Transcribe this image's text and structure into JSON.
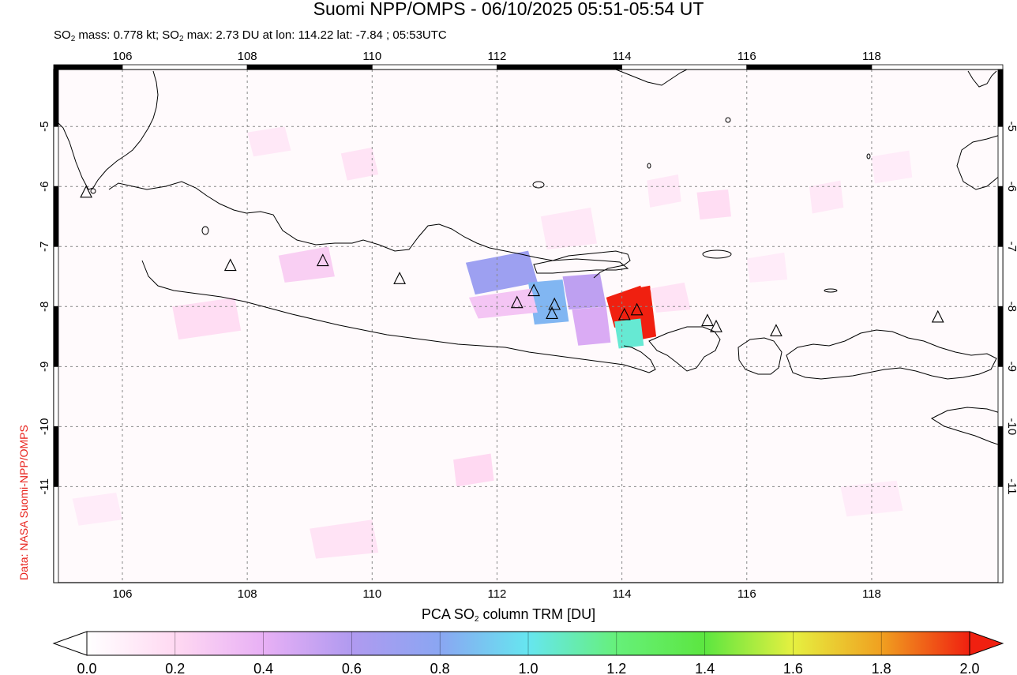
{
  "title": "Suomi NPP/OMPS - 06/10/2025 05:51-05:54 UT",
  "subtitle": {
    "mass_prefix": "SO",
    "mass_sub": "2",
    "mass_text": " mass: 0.778 kt; SO",
    "max_sub": "2",
    "max_text": " max: 2.73 DU at lon: 114.22 lat: -7.84 ; 05:53UTC"
  },
  "credit": "Data: NASA Suomi-NPP/OMPS",
  "map": {
    "lon_range": [
      104.9,
      120.1
    ],
    "lat_range": [
      -12.6,
      -4.05
    ],
    "lon_ticks": [
      106,
      108,
      110,
      112,
      114,
      116,
      118
    ],
    "lat_ticks": [
      -5,
      -6,
      -7,
      -8,
      -9,
      -10,
      -11
    ],
    "grid": true,
    "volcanoes": [
      {
        "lon": 105.42,
        "lat": -6.1
      },
      {
        "lon": 107.73,
        "lat": -7.32
      },
      {
        "lon": 109.21,
        "lat": -7.24
      },
      {
        "lon": 110.44,
        "lat": -7.54
      },
      {
        "lon": 112.32,
        "lat": -7.94
      },
      {
        "lon": 112.59,
        "lat": -7.74
      },
      {
        "lon": 112.92,
        "lat": -7.97
      },
      {
        "lon": 112.88,
        "lat": -8.12
      },
      {
        "lon": 114.04,
        "lat": -8.14
      },
      {
        "lon": 114.24,
        "lat": -8.06
      },
      {
        "lon": 115.37,
        "lat": -8.24
      },
      {
        "lon": 115.51,
        "lat": -8.34
      },
      {
        "lon": 116.47,
        "lat": -8.41
      },
      {
        "lon": 119.06,
        "lat": -8.18
      }
    ],
    "so2_pixels": [
      {
        "corners": [
          [
            111.5,
            -7.27
          ],
          [
            112.5,
            -7.07
          ],
          [
            112.65,
            -7.6
          ],
          [
            111.65,
            -7.8
          ]
        ],
        "value": 0.7
      },
      {
        "corners": [
          [
            112.5,
            -7.6
          ],
          [
            113.05,
            -7.55
          ],
          [
            113.15,
            -8.25
          ],
          [
            112.6,
            -8.3
          ]
        ],
        "value": 0.85
      },
      {
        "corners": [
          [
            113.05,
            -7.5
          ],
          [
            113.65,
            -7.45
          ],
          [
            113.75,
            -8.0
          ],
          [
            113.15,
            -8.05
          ]
        ],
        "value": 0.55
      },
      {
        "corners": [
          [
            111.55,
            -7.85
          ],
          [
            112.55,
            -7.7
          ],
          [
            112.65,
            -8.1
          ],
          [
            111.7,
            -8.2
          ]
        ],
        "value": 0.3
      },
      {
        "corners": [
          [
            113.2,
            -8.05
          ],
          [
            113.75,
            -8.0
          ],
          [
            113.82,
            -8.6
          ],
          [
            113.3,
            -8.65
          ]
        ],
        "value": 0.45
      },
      {
        "corners": [
          [
            113.75,
            -7.85
          ],
          [
            114.3,
            -7.65
          ],
          [
            114.45,
            -8.3
          ],
          [
            113.88,
            -8.35
          ]
        ],
        "value": 2.0
      },
      {
        "corners": [
          [
            114.2,
            -7.7
          ],
          [
            114.45,
            -7.65
          ],
          [
            114.55,
            -8.5
          ],
          [
            114.3,
            -8.55
          ]
        ],
        "value": 2.0
      },
      {
        "corners": [
          [
            113.88,
            -8.25
          ],
          [
            114.3,
            -8.2
          ],
          [
            114.35,
            -8.65
          ],
          [
            113.95,
            -8.7
          ]
        ],
        "value": 1.05
      },
      {
        "corners": [
          [
            114.45,
            -7.7
          ],
          [
            115.0,
            -7.6
          ],
          [
            115.1,
            -8.05
          ],
          [
            114.55,
            -8.1
          ]
        ],
        "value": 0.15
      },
      {
        "corners": [
          [
            112.7,
            -6.5
          ],
          [
            113.5,
            -6.35
          ],
          [
            113.6,
            -6.95
          ],
          [
            112.8,
            -7.05
          ]
        ],
        "value": 0.12
      },
      {
        "corners": [
          [
            106.8,
            -8.0
          ],
          [
            107.8,
            -7.85
          ],
          [
            107.9,
            -8.4
          ],
          [
            106.9,
            -8.55
          ]
        ],
        "value": 0.18
      },
      {
        "corners": [
          [
            108.5,
            -7.15
          ],
          [
            109.3,
            -7.0
          ],
          [
            109.4,
            -7.5
          ],
          [
            108.6,
            -7.6
          ]
        ],
        "value": 0.25
      },
      {
        "corners": [
          [
            109.5,
            -5.45
          ],
          [
            110.0,
            -5.35
          ],
          [
            110.1,
            -5.8
          ],
          [
            109.6,
            -5.9
          ]
        ],
        "value": 0.15
      },
      {
        "corners": [
          [
            108.0,
            -5.1
          ],
          [
            108.6,
            -5.0
          ],
          [
            108.7,
            -5.4
          ],
          [
            108.1,
            -5.5
          ]
        ],
        "value": 0.12
      },
      {
        "corners": [
          [
            111.3,
            -10.55
          ],
          [
            111.9,
            -10.45
          ],
          [
            111.95,
            -10.9
          ],
          [
            111.35,
            -11.0
          ]
        ],
        "value": 0.2
      },
      {
        "corners": [
          [
            109.0,
            -11.7
          ],
          [
            110.0,
            -11.55
          ],
          [
            110.1,
            -12.1
          ],
          [
            109.1,
            -12.2
          ]
        ],
        "value": 0.15
      },
      {
        "corners": [
          [
            117.0,
            -6.0
          ],
          [
            117.5,
            -5.9
          ],
          [
            117.55,
            -6.35
          ],
          [
            117.05,
            -6.45
          ]
        ],
        "value": 0.12
      },
      {
        "corners": [
          [
            115.2,
            -6.1
          ],
          [
            115.7,
            -6.05
          ],
          [
            115.75,
            -6.5
          ],
          [
            115.25,
            -6.55
          ]
        ],
        "value": 0.18
      },
      {
        "corners": [
          [
            114.4,
            -5.9
          ],
          [
            114.9,
            -5.8
          ],
          [
            114.95,
            -6.25
          ],
          [
            114.45,
            -6.35
          ]
        ],
        "value": 0.12
      },
      {
        "corners": [
          [
            116.0,
            -7.2
          ],
          [
            116.6,
            -7.1
          ],
          [
            116.65,
            -7.55
          ],
          [
            116.05,
            -7.6
          ]
        ],
        "value": 0.1
      },
      {
        "corners": [
          [
            118.0,
            -5.5
          ],
          [
            118.6,
            -5.4
          ],
          [
            118.65,
            -5.85
          ],
          [
            118.05,
            -5.95
          ]
        ],
        "value": 0.1
      },
      {
        "corners": [
          [
            105.2,
            -11.2
          ],
          [
            105.9,
            -11.1
          ],
          [
            106.0,
            -11.55
          ],
          [
            105.3,
            -11.65
          ]
        ],
        "value": 0.1
      },
      {
        "corners": [
          [
            117.5,
            -11.0
          ],
          [
            118.4,
            -10.9
          ],
          [
            118.5,
            -11.4
          ],
          [
            117.6,
            -11.5
          ]
        ],
        "value": 0.1
      }
    ],
    "colorbar": {
      "label_prefix": "PCA SO",
      "label_sub": "2",
      "label_suffix": " column TRM [DU]",
      "ticks": [
        "0.0",
        "0.2",
        "0.4",
        "0.6",
        "0.8",
        "1.0",
        "1.2",
        "1.4",
        "1.6",
        "1.8",
        "2.0"
      ],
      "stops": [
        "#ffffff",
        "#ffd9f2",
        "#e8b0f5",
        "#b09af0",
        "#8aa6f2",
        "#66e6f0",
        "#66f07a",
        "#5ce640",
        "#e6f040",
        "#f0a020",
        "#f02010"
      ]
    }
  }
}
